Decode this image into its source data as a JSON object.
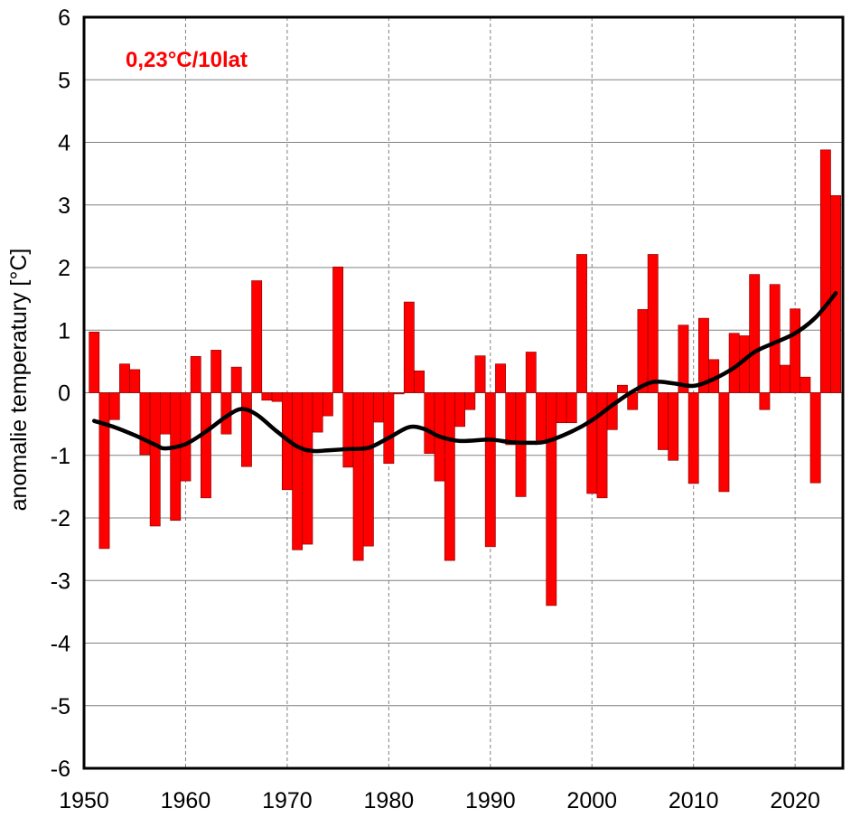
{
  "chart_data": {
    "type": "bar",
    "title": "",
    "annotation": "0,23°C/10lat",
    "xlabel": "",
    "ylabel": "anomalie temperatury [°C]",
    "xlim": [
      1950,
      2024.7
    ],
    "ylim": [
      -6,
      6
    ],
    "x_ticks": [
      "1950",
      "1960",
      "1970",
      "1980",
      "1990",
      "2000",
      "2010",
      "2020"
    ],
    "y_ticks": [
      "6",
      "5",
      "4",
      "3",
      "2",
      "1",
      "0",
      "-1",
      "-2",
      "-3",
      "-4",
      "-5",
      "-6"
    ],
    "grid": "on",
    "colors": {
      "bars": "#ff0000",
      "bar_edge": "#7a0000",
      "smooth": "#000000",
      "annotation": "#ff0000"
    },
    "x": [
      1951,
      1952,
      1953,
      1954,
      1955,
      1956,
      1957,
      1958,
      1959,
      1960,
      1961,
      1962,
      1963,
      1964,
      1965,
      1966,
      1967,
      1968,
      1969,
      1970,
      1971,
      1972,
      1973,
      1974,
      1975,
      1976,
      1977,
      1978,
      1979,
      1980,
      1981,
      1982,
      1983,
      1984,
      1985,
      1986,
      1987,
      1988,
      1989,
      1990,
      1991,
      1992,
      1993,
      1994,
      1995,
      1996,
      1997,
      1998,
      1999,
      2000,
      2001,
      2002,
      2003,
      2004,
      2005,
      2006,
      2007,
      2008,
      2009,
      2010,
      2011,
      2012,
      2013,
      2014,
      2015,
      2016,
      2017,
      2018,
      2019,
      2020,
      2021,
      2022,
      2023,
      2024
    ],
    "series": [
      {
        "name": "anomaly",
        "type": "bar",
        "values": [
          0.97,
          -2.49,
          -0.43,
          0.46,
          0.37,
          -0.99,
          -2.13,
          -0.66,
          -2.04,
          -1.41,
          0.58,
          -1.68,
          0.68,
          -0.66,
          0.41,
          -1.18,
          1.79,
          -0.12,
          -0.14,
          -1.55,
          -2.51,
          -2.42,
          -0.63,
          -0.37,
          2.01,
          -1.19,
          -2.68,
          -2.45,
          -0.47,
          -1.13,
          -0.02,
          1.45,
          0.35,
          -0.97,
          -1.41,
          -2.68,
          -0.54,
          -0.27,
          0.59,
          -2.46,
          0.46,
          -0.83,
          -1.66,
          0.65,
          -0.78,
          -3.4,
          -0.48,
          -0.48,
          2.21,
          -1.61,
          -1.68,
          -0.59,
          0.12,
          -0.27,
          1.33,
          2.21,
          -0.91,
          -1.08,
          1.08,
          -1.45,
          1.19,
          0.53,
          -1.58,
          0.95,
          0.91,
          1.89,
          -0.27,
          1.73,
          0.44,
          1.34,
          0.25,
          -1.44,
          3.88,
          3.15
        ]
      },
      {
        "name": "smoothed",
        "type": "line",
        "x": [
          1951,
          1953,
          1955,
          1957,
          1958,
          1960,
          1962,
          1964,
          1965.5,
          1967,
          1969,
          1971,
          1972.5,
          1974,
          1976,
          1978,
          1980,
          1982,
          1983.5,
          1985,
          1987,
          1990,
          1992,
          1994,
          1995.5,
          1998,
          2000,
          2002,
          2004,
          2006,
          2008,
          2010,
          2012,
          2014,
          2016,
          2018,
          2020,
          2022,
          2024
        ],
        "values": [
          -0.45,
          -0.55,
          -0.68,
          -0.83,
          -0.89,
          -0.82,
          -0.62,
          -0.38,
          -0.26,
          -0.35,
          -0.62,
          -0.86,
          -0.93,
          -0.92,
          -0.9,
          -0.88,
          -0.72,
          -0.55,
          -0.58,
          -0.7,
          -0.77,
          -0.75,
          -0.79,
          -0.8,
          -0.78,
          -0.62,
          -0.44,
          -0.2,
          0.02,
          0.17,
          0.15,
          0.11,
          0.22,
          0.4,
          0.65,
          0.8,
          0.95,
          1.2,
          1.59
        ]
      }
    ]
  }
}
